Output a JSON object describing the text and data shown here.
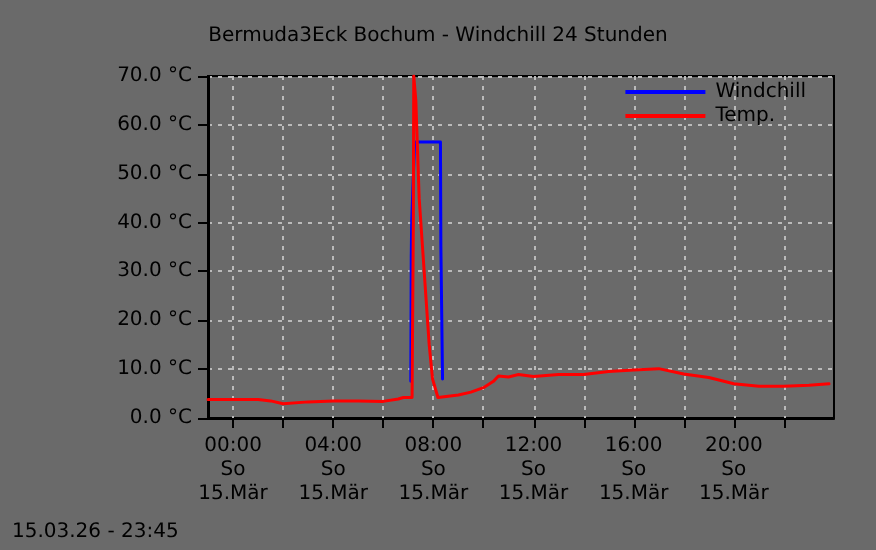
{
  "chart_data": {
    "type": "line",
    "title": "Bermuda3Eck Bochum - Windchill 24 Stunden",
    "xlim": [
      "--03-14T23:00",
      "--03-16T00:00"
    ],
    "xticks": [
      {
        "value": "--03-15T00:00",
        "label": "00:00\nSo\n15.Mär"
      },
      {
        "value": "--03-15T02:00",
        "label": null
      },
      {
        "value": "--03-15T04:00",
        "label": "04:00\nSo\n15.Mär"
      },
      {
        "value": "--03-15T06:00",
        "label": null
      },
      {
        "value": "--03-15T08:00",
        "label": "08:00\nSo\n15.Mär"
      },
      {
        "value": "--03-15T10:00",
        "label": null
      },
      {
        "value": "--03-15T12:00",
        "label": "12:00\nSo\n15.Mär"
      },
      {
        "value": "--03-15T14:00",
        "label": null
      },
      {
        "value": "--03-15T16:00",
        "label": "16:00\nSo\n15.Mär"
      },
      {
        "value": "--03-15T18:00",
        "label": null
      },
      {
        "value": "--03-15T20:00",
        "label": "20:00\nSo\n15.Mär"
      },
      {
        "value": "--03-15T22:00",
        "label": null
      }
    ],
    "ylim": [
      0,
      70
    ],
    "yticks": [
      {
        "value": 0,
        "label": "0.0 °C"
      },
      {
        "value": 10,
        "label": "10.0 °C"
      },
      {
        "value": 20,
        "label": "20.0 °C"
      },
      {
        "value": 30,
        "label": "30.0 °C"
      },
      {
        "value": 40,
        "label": "40.0 °C"
      },
      {
        "value": 50,
        "label": "50.0 °C"
      },
      {
        "value": 60,
        "label": "60.0 °C"
      },
      {
        "value": 70,
        "label": "70.0 °C"
      }
    ],
    "grid": true,
    "legend": "top right",
    "marker": "none",
    "line_style": "solid",
    "annotations": [
      "15.03.26 - 23:45"
    ],
    "series": [
      {
        "name": "Windchill",
        "color": "#0000ff",
        "x": [
          "--03-15T07:06",
          "--03-15T07:07",
          "--03-15T07:08",
          "--03-15T07:15",
          "--03-15T08:17",
          "--03-15T08:18",
          "--03-15T08:22"
        ],
        "values": [
          7.5,
          33,
          40,
          56.5,
          56.5,
          35,
          8
        ]
      },
      {
        "name": "Temp.",
        "color": "#ff0000",
        "x": [
          "--03-14T23:00",
          "--03-15T00:00",
          "--03-15T01:00",
          "--03-15T01:30",
          "--03-15T02:00",
          "--03-15T03:00",
          "--03-15T04:00",
          "--03-15T05:00",
          "--03-15T06:00",
          "--03-15T06:36",
          "--03-15T06:48",
          "--03-15T07:00",
          "--03-15T07:09",
          "--03-15T07:12",
          "--03-15T07:13",
          "--03-15T07:18",
          "--03-15T07:26",
          "--03-15T07:34",
          "--03-15T07:42",
          "--03-15T07:50",
          "--03-15T07:58",
          "--03-15T08:11",
          "--03-15T09:00",
          "--03-15T09:30",
          "--03-15T10:00",
          "--03-15T10:24",
          "--03-15T10:36",
          "--03-15T11:00",
          "--03-15T11:24",
          "--03-15T12:00",
          "--03-15T13:00",
          "--03-15T14:00",
          "--03-15T15:00",
          "--03-15T16:00",
          "--03-15T17:00",
          "--03-15T18:00",
          "--03-15T19:00",
          "--03-15T20:00",
          "--03-15T21:00",
          "--03-15T22:00",
          "--03-15T23:00",
          "--03-15T23:48"
        ],
        "values": [
          3.8,
          3.8,
          3.8,
          3.5,
          2.9,
          3.3,
          3.5,
          3.5,
          3.4,
          3.9,
          4.2,
          4.2,
          4.2,
          40,
          70,
          65,
          45,
          35,
          25,
          15,
          8,
          4.2,
          4.7,
          5.3,
          6.2,
          7.5,
          8.6,
          8.4,
          8.9,
          8.5,
          8.9,
          8.9,
          9.5,
          9.8,
          10.1,
          9.0,
          8.3,
          7.0,
          6.5,
          6.5,
          6.7,
          7.0
        ]
      }
    ]
  }
}
